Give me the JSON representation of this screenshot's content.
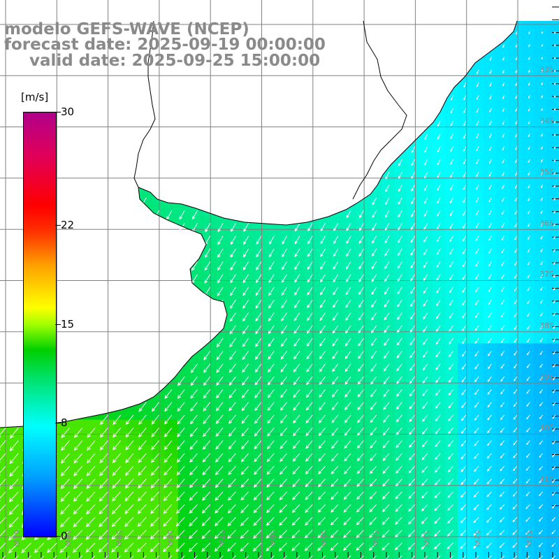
{
  "title": {
    "line1": "modelo GEFS-WAVE (NCEP)",
    "line2": "forecast date: 2025-09-19 00:00:00",
    "line3": "valid date: 2025-09-25 15:00:00"
  },
  "colorbar": {
    "unit": "[m/s]",
    "range": [
      0,
      30
    ],
    "labels": [
      {
        "text": "30",
        "value": 30
      },
      {
        "text": "22",
        "value": 22
      },
      {
        "text": "15",
        "value": 15
      },
      {
        "text": "8",
        "value": 8
      },
      {
        "text": "0",
        "value": 0
      }
    ],
    "colors": [
      "#0000ff",
      "#00a0ff",
      "#00ffff",
      "#00e060",
      "#00d000",
      "#a0ff00",
      "#ffff00",
      "#ffa000",
      "#ff3000",
      "#ff0000",
      "#e0005a",
      "#b0008a"
    ]
  },
  "map": {
    "lon_labels": [
      "61W",
      "60W",
      "59W",
      "58W",
      "57W",
      "56W",
      "55W",
      "54W",
      "53W",
      "52W",
      "51W"
    ],
    "lat_labels": [
      "33S",
      "34S",
      "35S",
      "36S",
      "37S",
      "38S",
      "39S",
      "40S",
      "41S"
    ],
    "land_color": "#ffffff",
    "grid_color": "#808080",
    "arrow_color": "#ffffff"
  }
}
